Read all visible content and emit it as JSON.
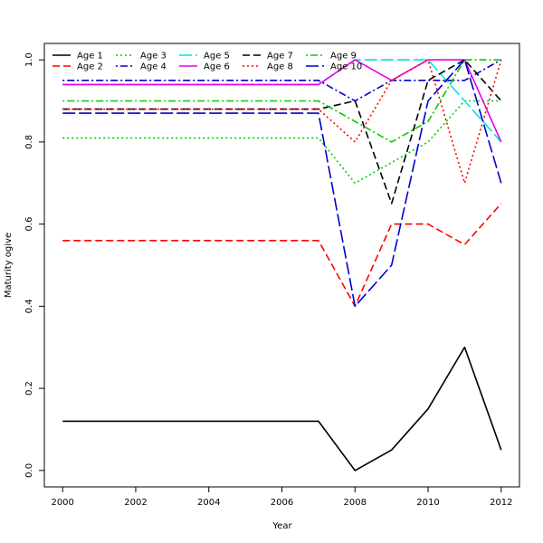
{
  "chart_data": {
    "type": "line",
    "title": "",
    "xlabel": "Year",
    "ylabel": "Maturity ogive",
    "xlim": [
      1999.5,
      2012.5
    ],
    "ylim": [
      -0.04,
      1.04
    ],
    "xticks": [
      2000,
      2002,
      2004,
      2006,
      2008,
      2010,
      2012
    ],
    "yticks": [
      0.0,
      0.2,
      0.4,
      0.6,
      0.8,
      1.0
    ],
    "xtick_labels": [
      "2000",
      "2002",
      "2004",
      "2006",
      "2008",
      "2010",
      "2012"
    ],
    "ytick_labels": [
      "0.0",
      "0.2",
      "0.4",
      "0.6",
      "0.8",
      "1.0"
    ],
    "grid": false,
    "legend_position": "top-left",
    "x": [
      2000,
      2001,
      2002,
      2003,
      2004,
      2005,
      2006,
      2007,
      2008,
      2009,
      2010,
      2011,
      2012
    ],
    "series": [
      {
        "name": "Age 1",
        "color": "#000000",
        "dash": "solid",
        "values": [
          0.12,
          0.12,
          0.12,
          0.12,
          0.12,
          0.12,
          0.12,
          0.12,
          0.0,
          0.05,
          0.15,
          0.3,
          0.05
        ]
      },
      {
        "name": "Age 2",
        "color": "#ff0000",
        "dash": "dashed",
        "values": [
          0.56,
          0.56,
          0.56,
          0.56,
          0.56,
          0.56,
          0.56,
          0.56,
          0.4,
          0.6,
          0.6,
          0.55,
          0.65
        ]
      },
      {
        "name": "Age 3",
        "color": "#00cd00",
        "dash": "dotted",
        "values": [
          0.81,
          0.81,
          0.81,
          0.81,
          0.81,
          0.81,
          0.81,
          0.81,
          0.7,
          0.75,
          0.8,
          0.9,
          0.9
        ]
      },
      {
        "name": "Age 4",
        "color": "#0000cd",
        "dash": "dotdash",
        "values": [
          0.95,
          0.95,
          0.95,
          0.95,
          0.95,
          0.95,
          0.95,
          0.95,
          0.9,
          0.95,
          0.95,
          0.95,
          1.0
        ]
      },
      {
        "name": "Age 5",
        "color": "#00e5e5",
        "dash": "longdash",
        "values": [
          0.94,
          0.94,
          0.94,
          0.94,
          0.94,
          0.94,
          0.94,
          0.94,
          1.0,
          1.0,
          1.0,
          0.9,
          0.8
        ]
      },
      {
        "name": "Age 6",
        "color": "#e500e5",
        "dash": "solid",
        "values": [
          0.94,
          0.94,
          0.94,
          0.94,
          0.94,
          0.94,
          0.94,
          0.94,
          1.0,
          0.95,
          1.0,
          1.0,
          0.8
        ]
      },
      {
        "name": "Age 7",
        "color": "#000000",
        "dash": "dashed",
        "values": [
          0.88,
          0.88,
          0.88,
          0.88,
          0.88,
          0.88,
          0.88,
          0.88,
          0.9,
          0.65,
          0.95,
          1.0,
          0.9
        ]
      },
      {
        "name": "Age 8",
        "color": "#ff0000",
        "dash": "dotted",
        "values": [
          0.88,
          0.88,
          0.88,
          0.88,
          0.88,
          0.88,
          0.88,
          0.88,
          0.8,
          0.95,
          1.0,
          0.7,
          1.0
        ]
      },
      {
        "name": "Age 9",
        "color": "#00cd00",
        "dash": "dotdash",
        "values": [
          0.9,
          0.9,
          0.9,
          0.9,
          0.9,
          0.9,
          0.9,
          0.9,
          0.85,
          0.8,
          0.85,
          1.0,
          1.0
        ]
      },
      {
        "name": "Age 10",
        "color": "#0000cd",
        "dash": "longdash",
        "values": [
          0.87,
          0.87,
          0.87,
          0.87,
          0.87,
          0.87,
          0.87,
          0.87,
          0.4,
          0.5,
          0.9,
          1.0,
          0.7
        ]
      }
    ]
  }
}
